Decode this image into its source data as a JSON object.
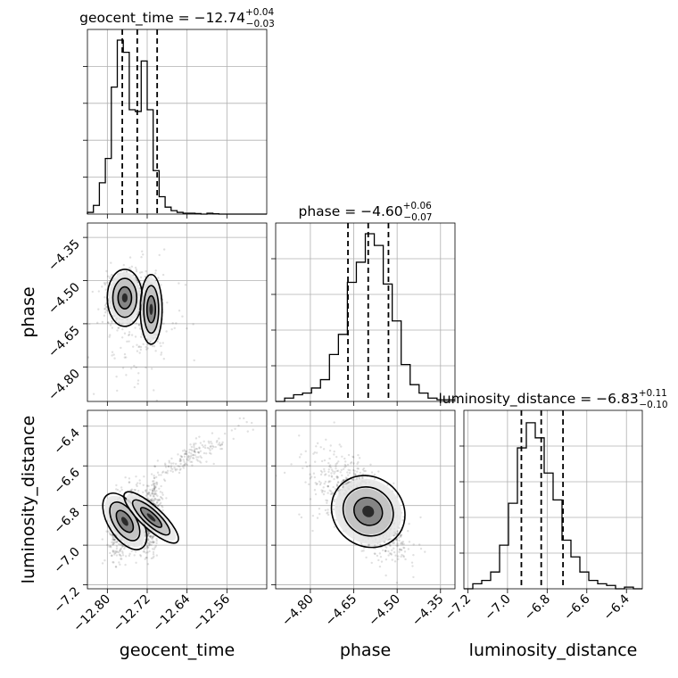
{
  "chart_data": {
    "type": "corner",
    "parameters": [
      "geocent_time",
      "phase",
      "luminosity_distance"
    ],
    "grid": true,
    "titles": [
      {
        "param": "geocent_time",
        "prefix": "geocent_time = ",
        "median": "−12.74",
        "plus": "+0.04",
        "minus": "−0.03"
      },
      {
        "param": "phase",
        "prefix": "phase = ",
        "median": "−4.60",
        "plus": "+0.06",
        "minus": "−0.07"
      },
      {
        "param": "luminosity_distance",
        "prefix": "luminosity_distance = ",
        "median": "−6.83",
        "plus": "+0.11",
        "minus": "−0.10"
      }
    ],
    "axes": {
      "geocent_time": {
        "range": [
          -12.84,
          -12.48
        ],
        "ticks": [
          -12.8,
          -12.72,
          -12.64,
          -12.56
        ],
        "tick_labels": [
          "−12.80",
          "−12.72",
          "−12.64",
          "−12.56"
        ]
      },
      "phase": {
        "range": [
          -4.92,
          -4.3
        ],
        "ticks": [
          -4.8,
          -4.65,
          -4.5,
          -4.35
        ],
        "tick_labels": [
          "−4.80",
          "−4.65",
          "−4.50",
          "−4.35"
        ]
      },
      "luminosity_distance": {
        "range": [
          -7.22,
          -6.32
        ],
        "ticks": [
          -7.2,
          -7.0,
          -6.8,
          -6.6,
          -6.4
        ],
        "tick_labels": [
          "−7.2",
          "−7.0",
          "−6.8",
          "−6.6",
          "−6.4"
        ]
      }
    },
    "quantiles": {
      "geocent_time": [
        -12.77,
        -12.74,
        -12.7
      ],
      "phase": [
        -4.67,
        -4.6,
        -4.53
      ],
      "luminosity_distance": [
        -6.93,
        -6.83,
        -6.72
      ]
    },
    "histograms": {
      "geocent_time": {
        "edges_start": -12.84,
        "bin_width": 0.012,
        "counts": [
          0.01,
          0.05,
          0.18,
          0.32,
          0.73,
          1.0,
          0.93,
          0.6,
          0.59,
          0.88,
          0.6,
          0.25,
          0.1,
          0.04,
          0.02,
          0.01,
          0.005,
          0.005,
          0.003,
          0.0,
          0.005,
          0.002,
          0.0,
          0.0,
          0.0,
          0.0,
          0.0,
          0.0,
          0.0,
          0.0
        ]
      },
      "phase": {
        "edges_start": -4.92,
        "bin_width": 0.031,
        "counts": [
          0.0,
          0.02,
          0.04,
          0.05,
          0.08,
          0.13,
          0.28,
          0.4,
          0.71,
          0.83,
          1.0,
          0.93,
          0.7,
          0.48,
          0.22,
          0.1,
          0.05,
          0.02,
          0.01,
          0.01
        ]
      },
      "luminosity_distance": {
        "edges_start": -7.22,
        "bin_width": 0.045,
        "counts": [
          0.0,
          0.03,
          0.05,
          0.1,
          0.26,
          0.51,
          0.84,
          0.99,
          0.9,
          0.69,
          0.53,
          0.29,
          0.19,
          0.1,
          0.05,
          0.03,
          0.02,
          0.0,
          0.01,
          0.0
        ]
      }
    },
    "scatter_2d": [
      {
        "x": "geocent_time",
        "y": "phase",
        "clusters": [
          {
            "mx": -12.765,
            "my": -4.56,
            "sx": 0.016,
            "sy": 0.045,
            "rho": 0.0,
            "w": 0.55
          },
          {
            "mx": -12.712,
            "my": -4.6,
            "sx": 0.01,
            "sy": 0.055,
            "rho": 0.0,
            "w": 0.35
          },
          {
            "mx": -12.74,
            "my": -4.65,
            "sx": 0.05,
            "sy": 0.1,
            "rho": 0.0,
            "w": 0.1
          }
        ]
      },
      {
        "x": "geocent_time",
        "y": "luminosity_distance",
        "clusters": [
          {
            "mx": -12.765,
            "my": -6.88,
            "sx": 0.015,
            "sy": 0.08,
            "rho": 0.3,
            "w": 0.55
          },
          {
            "mx": -12.712,
            "my": -6.86,
            "sx": 0.01,
            "sy": 0.09,
            "rho": 0.3,
            "w": 0.33
          },
          {
            "mx": -12.63,
            "my": -6.55,
            "sx": 0.05,
            "sy": 0.07,
            "rho": 0.9,
            "w": 0.12
          }
        ]
      },
      {
        "x": "phase",
        "y": "luminosity_distance",
        "clusters": [
          {
            "mx": -4.6,
            "my": -6.83,
            "sx": 0.06,
            "sy": 0.1,
            "rho": -0.7,
            "w": 0.85
          },
          {
            "mx": -4.66,
            "my": -6.75,
            "sx": 0.1,
            "sy": 0.14,
            "rho": -0.5,
            "w": 0.15
          }
        ]
      }
    ]
  }
}
